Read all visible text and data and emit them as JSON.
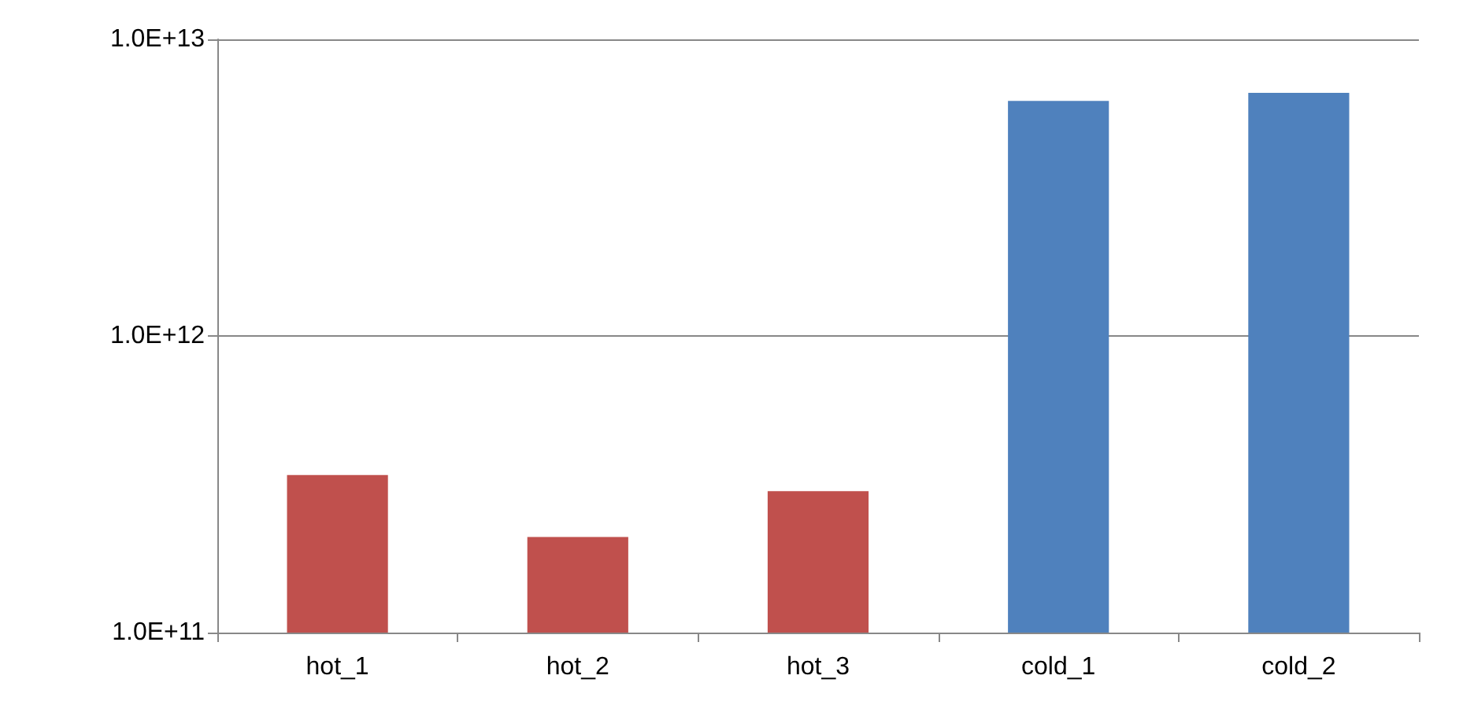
{
  "chart_data": {
    "type": "bar",
    "categories": [
      "hot_1",
      "hot_2",
      "hot_3",
      "cold_1",
      "cold_2"
    ],
    "values": [
      340000000000.0,
      210000000000.0,
      300000000000.0,
      6200000000000.0,
      6600000000000.0
    ],
    "colors": [
      "#c0504d",
      "#c0504d",
      "#c0504d",
      "#4f81bd",
      "#4f81bd"
    ],
    "log": true,
    "ylim": [
      100000000000.0,
      10000000000000.0
    ],
    "yticks": [
      {
        "value": 100000000000.0,
        "label": "1.0E+11"
      },
      {
        "value": 1000000000000.0,
        "label": "1.0E+12"
      },
      {
        "value": 10000000000000.0,
        "label": "1.0E+13"
      }
    ],
    "grid": "y"
  }
}
